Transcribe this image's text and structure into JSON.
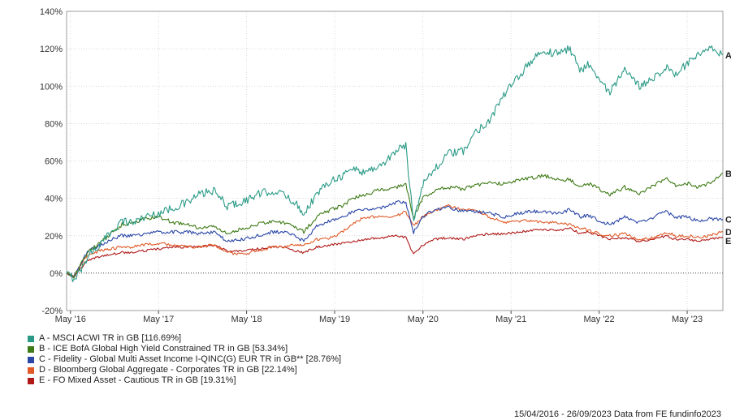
{
  "chart_data": {
    "type": "line",
    "y_unit": "%",
    "ylim": [
      -20,
      140
    ],
    "y_ticks": [
      "140%",
      "120%",
      "100%",
      "80%",
      "60%",
      "40%",
      "20%",
      "0%",
      "-20%"
    ],
    "x_ticks": [
      "May '16",
      "May '17",
      "May '18",
      "May '19",
      "May '20",
      "May '21",
      "May '22",
      "May '23"
    ],
    "grid": true,
    "legend_position": "bottom-left",
    "series": [
      {
        "name": "A - MSCI ACWI TR in GB [116.69%]",
        "end_label": "A",
        "color": "#2a9a86",
        "points": [
          [
            "2016-04-15",
            0
          ],
          [
            "2016-05-15",
            -3
          ],
          [
            "2016-06-15",
            2
          ],
          [
            "2016-07-15",
            10
          ],
          [
            "2016-09-01",
            15
          ],
          [
            "2016-10-15",
            22
          ],
          [
            "2016-12-01",
            28
          ],
          [
            "2017-01-15",
            27
          ],
          [
            "2017-03-01",
            30
          ],
          [
            "2017-05-01",
            32
          ],
          [
            "2017-07-01",
            35
          ],
          [
            "2017-09-01",
            38
          ],
          [
            "2017-10-15",
            42
          ],
          [
            "2017-12-15",
            44
          ],
          [
            "2018-02-10",
            36
          ],
          [
            "2018-04-15",
            38
          ],
          [
            "2018-06-15",
            42
          ],
          [
            "2018-08-15",
            44
          ],
          [
            "2018-10-01",
            42
          ],
          [
            "2018-11-15",
            38
          ],
          [
            "2018-12-24",
            32
          ],
          [
            "2019-02-15",
            42
          ],
          [
            "2019-04-15",
            50
          ],
          [
            "2019-06-01",
            52
          ],
          [
            "2019-07-15",
            56
          ],
          [
            "2019-09-01",
            54
          ],
          [
            "2019-11-15",
            58
          ],
          [
            "2020-01-15",
            66
          ],
          [
            "2020-02-20",
            68
          ],
          [
            "2020-03-23",
            28
          ],
          [
            "2020-04-30",
            48
          ],
          [
            "2020-06-15",
            55
          ],
          [
            "2020-08-15",
            64
          ],
          [
            "2020-10-15",
            65
          ],
          [
            "2020-12-01",
            75
          ],
          [
            "2021-02-01",
            82
          ],
          [
            "2021-04-01",
            95
          ],
          [
            "2021-06-01",
            105
          ],
          [
            "2021-08-01",
            115
          ],
          [
            "2021-09-15",
            118
          ],
          [
            "2021-11-15",
            118
          ],
          [
            "2022-01-01",
            120
          ],
          [
            "2022-02-15",
            108
          ],
          [
            "2022-03-15",
            113
          ],
          [
            "2022-05-01",
            103
          ],
          [
            "2022-06-15",
            97
          ],
          [
            "2022-08-15",
            108
          ],
          [
            "2022-10-15",
            100
          ],
          [
            "2022-12-15",
            105
          ],
          [
            "2023-02-01",
            110
          ],
          [
            "2023-03-15",
            106
          ],
          [
            "2023-05-01",
            112
          ],
          [
            "2023-06-15",
            116
          ],
          [
            "2023-08-01",
            120
          ],
          [
            "2023-09-26",
            116.69
          ]
        ]
      },
      {
        "name": "B - ICE BofA Global High Yield Constrained TR in GB [53.34%]",
        "end_label": "B",
        "color": "#3e7a16",
        "points": [
          [
            "2016-04-15",
            0
          ],
          [
            "2016-05-15",
            -2
          ],
          [
            "2016-06-15",
            5
          ],
          [
            "2016-07-15",
            12
          ],
          [
            "2016-09-01",
            16
          ],
          [
            "2016-10-15",
            21
          ],
          [
            "2016-12-01",
            26
          ],
          [
            "2017-01-15",
            27
          ],
          [
            "2017-03-01",
            29
          ],
          [
            "2017-05-01",
            30
          ],
          [
            "2017-07-01",
            27
          ],
          [
            "2017-09-01",
            26
          ],
          [
            "2017-10-15",
            24
          ],
          [
            "2017-12-15",
            25
          ],
          [
            "2018-02-10",
            21
          ],
          [
            "2018-04-15",
            24
          ],
          [
            "2018-06-15",
            26
          ],
          [
            "2018-08-15",
            28
          ],
          [
            "2018-10-01",
            27
          ],
          [
            "2018-11-15",
            25
          ],
          [
            "2018-12-24",
            22
          ],
          [
            "2019-02-15",
            30
          ],
          [
            "2019-04-15",
            34
          ],
          [
            "2019-06-01",
            36
          ],
          [
            "2019-07-15",
            40
          ],
          [
            "2019-09-01",
            42
          ],
          [
            "2019-11-15",
            45
          ],
          [
            "2020-01-15",
            46
          ],
          [
            "2020-02-20",
            47
          ],
          [
            "2020-03-23",
            30
          ],
          [
            "2020-04-30",
            40
          ],
          [
            "2020-06-15",
            44
          ],
          [
            "2020-08-15",
            46
          ],
          [
            "2020-10-15",
            45
          ],
          [
            "2020-12-01",
            47
          ],
          [
            "2021-02-01",
            48
          ],
          [
            "2021-04-01",
            48
          ],
          [
            "2021-06-01",
            50
          ],
          [
            "2021-08-01",
            51
          ],
          [
            "2021-09-15",
            52
          ],
          [
            "2021-11-15",
            50
          ],
          [
            "2022-01-01",
            50
          ],
          [
            "2022-02-15",
            46
          ],
          [
            "2022-03-15",
            48
          ],
          [
            "2022-05-01",
            45
          ],
          [
            "2022-06-15",
            42
          ],
          [
            "2022-08-15",
            46
          ],
          [
            "2022-10-15",
            42
          ],
          [
            "2022-12-15",
            47
          ],
          [
            "2023-02-01",
            51
          ],
          [
            "2023-03-15",
            47
          ],
          [
            "2023-05-01",
            48
          ],
          [
            "2023-06-15",
            46
          ],
          [
            "2023-08-01",
            48
          ],
          [
            "2023-09-26",
            53.34
          ]
        ]
      },
      {
        "name": "C - Fidelity - Global Multi Asset Income I-QINC(G) EUR TR in GB** [28.76%]",
        "end_label": "C",
        "color": "#2a47a6",
        "points": [
          [
            "2016-04-15",
            0
          ],
          [
            "2016-05-15",
            -2
          ],
          [
            "2016-06-15",
            6
          ],
          [
            "2016-07-15",
            12
          ],
          [
            "2016-09-01",
            15
          ],
          [
            "2016-10-15",
            18
          ],
          [
            "2016-12-01",
            20
          ],
          [
            "2017-01-15",
            20
          ],
          [
            "2017-03-01",
            21
          ],
          [
            "2017-05-01",
            22
          ],
          [
            "2017-07-01",
            22
          ],
          [
            "2017-09-01",
            22
          ],
          [
            "2017-10-15",
            21
          ],
          [
            "2017-12-15",
            22
          ],
          [
            "2018-02-10",
            17
          ],
          [
            "2018-04-15",
            18
          ],
          [
            "2018-06-15",
            20
          ],
          [
            "2018-08-15",
            22
          ],
          [
            "2018-10-01",
            22
          ],
          [
            "2018-11-15",
            20
          ],
          [
            "2018-12-24",
            17
          ],
          [
            "2019-02-15",
            25
          ],
          [
            "2019-04-15",
            28
          ],
          [
            "2019-06-01",
            30
          ],
          [
            "2019-07-15",
            33
          ],
          [
            "2019-09-01",
            34
          ],
          [
            "2019-11-15",
            35
          ],
          [
            "2020-01-15",
            38
          ],
          [
            "2020-02-20",
            38
          ],
          [
            "2020-03-23",
            22
          ],
          [
            "2020-04-30",
            30
          ],
          [
            "2020-06-15",
            34
          ],
          [
            "2020-08-15",
            35
          ],
          [
            "2020-10-15",
            33
          ],
          [
            "2020-12-01",
            33
          ],
          [
            "2021-02-01",
            32
          ],
          [
            "2021-04-01",
            30
          ],
          [
            "2021-06-01",
            32
          ],
          [
            "2021-08-01",
            33
          ],
          [
            "2021-09-15",
            33
          ],
          [
            "2021-11-15",
            32
          ],
          [
            "2022-01-01",
            34
          ],
          [
            "2022-02-15",
            30
          ],
          [
            "2022-03-15",
            31
          ],
          [
            "2022-05-01",
            28
          ],
          [
            "2022-06-15",
            26
          ],
          [
            "2022-08-15",
            30
          ],
          [
            "2022-10-15",
            27
          ],
          [
            "2022-12-15",
            30
          ],
          [
            "2023-02-01",
            33
          ],
          [
            "2023-03-15",
            30
          ],
          [
            "2023-05-01",
            30
          ],
          [
            "2023-06-15",
            28
          ],
          [
            "2023-08-01",
            29
          ],
          [
            "2023-09-26",
            28.76
          ]
        ]
      },
      {
        "name": "D - Bloomberg Global Aggregate - Corporates TR in GB [22.14%]",
        "end_label": "D",
        "color": "#e05a28",
        "points": [
          [
            "2016-04-15",
            0
          ],
          [
            "2016-05-15",
            -2
          ],
          [
            "2016-06-15",
            5
          ],
          [
            "2016-07-15",
            10
          ],
          [
            "2016-09-01",
            12
          ],
          [
            "2016-10-15",
            13
          ],
          [
            "2016-12-01",
            14
          ],
          [
            "2017-01-15",
            14
          ],
          [
            "2017-03-01",
            15
          ],
          [
            "2017-05-01",
            16
          ],
          [
            "2017-07-01",
            15
          ],
          [
            "2017-09-01",
            14
          ],
          [
            "2017-10-15",
            14
          ],
          [
            "2017-12-15",
            15
          ],
          [
            "2018-02-10",
            11
          ],
          [
            "2018-04-15",
            10
          ],
          [
            "2018-06-15",
            12
          ],
          [
            "2018-08-15",
            14
          ],
          [
            "2018-10-01",
            14
          ],
          [
            "2018-11-15",
            15
          ],
          [
            "2018-12-24",
            15
          ],
          [
            "2019-02-15",
            18
          ],
          [
            "2019-04-15",
            19
          ],
          [
            "2019-06-01",
            22
          ],
          [
            "2019-07-15",
            26
          ],
          [
            "2019-09-01",
            30
          ],
          [
            "2019-11-15",
            30
          ],
          [
            "2020-01-15",
            31
          ],
          [
            "2020-02-20",
            33
          ],
          [
            "2020-03-23",
            25
          ],
          [
            "2020-04-30",
            30
          ],
          [
            "2020-06-15",
            33
          ],
          [
            "2020-08-15",
            36
          ],
          [
            "2020-10-15",
            34
          ],
          [
            "2020-12-01",
            34
          ],
          [
            "2021-02-01",
            30
          ],
          [
            "2021-04-01",
            27
          ],
          [
            "2021-06-01",
            28
          ],
          [
            "2021-08-01",
            28
          ],
          [
            "2021-09-15",
            27
          ],
          [
            "2021-11-15",
            27
          ],
          [
            "2022-01-01",
            26
          ],
          [
            "2022-02-15",
            24
          ],
          [
            "2022-03-15",
            23
          ],
          [
            "2022-05-01",
            21
          ],
          [
            "2022-06-15",
            20
          ],
          [
            "2022-08-15",
            21
          ],
          [
            "2022-10-15",
            18
          ],
          [
            "2022-12-15",
            19
          ],
          [
            "2023-02-01",
            22
          ],
          [
            "2023-03-15",
            20
          ],
          [
            "2023-05-01",
            20
          ],
          [
            "2023-06-15",
            19
          ],
          [
            "2023-08-01",
            20
          ],
          [
            "2023-09-26",
            22.14
          ]
        ]
      },
      {
        "name": "E - FO Mixed Asset - Cautious TR in GB [19.31%]",
        "end_label": "E",
        "color": "#b01818",
        "points": [
          [
            "2016-04-15",
            0
          ],
          [
            "2016-05-15",
            -2
          ],
          [
            "2016-06-15",
            3
          ],
          [
            "2016-07-15",
            7
          ],
          [
            "2016-09-01",
            9
          ],
          [
            "2016-10-15",
            10
          ],
          [
            "2016-12-01",
            11
          ],
          [
            "2017-01-15",
            11
          ],
          [
            "2017-03-01",
            12
          ],
          [
            "2017-05-01",
            13
          ],
          [
            "2017-07-01",
            14
          ],
          [
            "2017-09-01",
            14
          ],
          [
            "2017-10-15",
            14
          ],
          [
            "2017-12-15",
            15
          ],
          [
            "2018-02-10",
            12
          ],
          [
            "2018-04-15",
            12
          ],
          [
            "2018-06-15",
            13
          ],
          [
            "2018-08-15",
            14
          ],
          [
            "2018-10-01",
            14
          ],
          [
            "2018-11-15",
            12
          ],
          [
            "2018-12-24",
            11
          ],
          [
            "2019-02-15",
            14
          ],
          [
            "2019-04-15",
            15
          ],
          [
            "2019-06-01",
            16
          ],
          [
            "2019-07-15",
            17
          ],
          [
            "2019-09-01",
            18
          ],
          [
            "2019-11-15",
            19
          ],
          [
            "2020-01-15",
            20
          ],
          [
            "2020-02-20",
            19
          ],
          [
            "2020-03-23",
            10
          ],
          [
            "2020-04-30",
            15
          ],
          [
            "2020-06-15",
            18
          ],
          [
            "2020-08-15",
            19
          ],
          [
            "2020-10-15",
            18
          ],
          [
            "2020-12-01",
            20
          ],
          [
            "2021-02-01",
            21
          ],
          [
            "2021-04-01",
            21
          ],
          [
            "2021-06-01",
            22
          ],
          [
            "2021-08-01",
            23
          ],
          [
            "2021-09-15",
            23
          ],
          [
            "2021-11-15",
            23
          ],
          [
            "2022-01-01",
            24
          ],
          [
            "2022-02-15",
            21
          ],
          [
            "2022-03-15",
            22
          ],
          [
            "2022-05-01",
            20
          ],
          [
            "2022-06-15",
            18
          ],
          [
            "2022-08-15",
            19
          ],
          [
            "2022-10-15",
            17
          ],
          [
            "2022-12-15",
            18
          ],
          [
            "2023-02-01",
            20
          ],
          [
            "2023-03-15",
            18
          ],
          [
            "2023-05-01",
            18
          ],
          [
            "2023-06-15",
            17
          ],
          [
            "2023-08-01",
            18
          ],
          [
            "2023-09-26",
            19.31
          ]
        ]
      }
    ]
  },
  "footer": {
    "date_range": "15/04/2016 - 26/09/2023",
    "source": "Data from FE fundinfo2023"
  }
}
